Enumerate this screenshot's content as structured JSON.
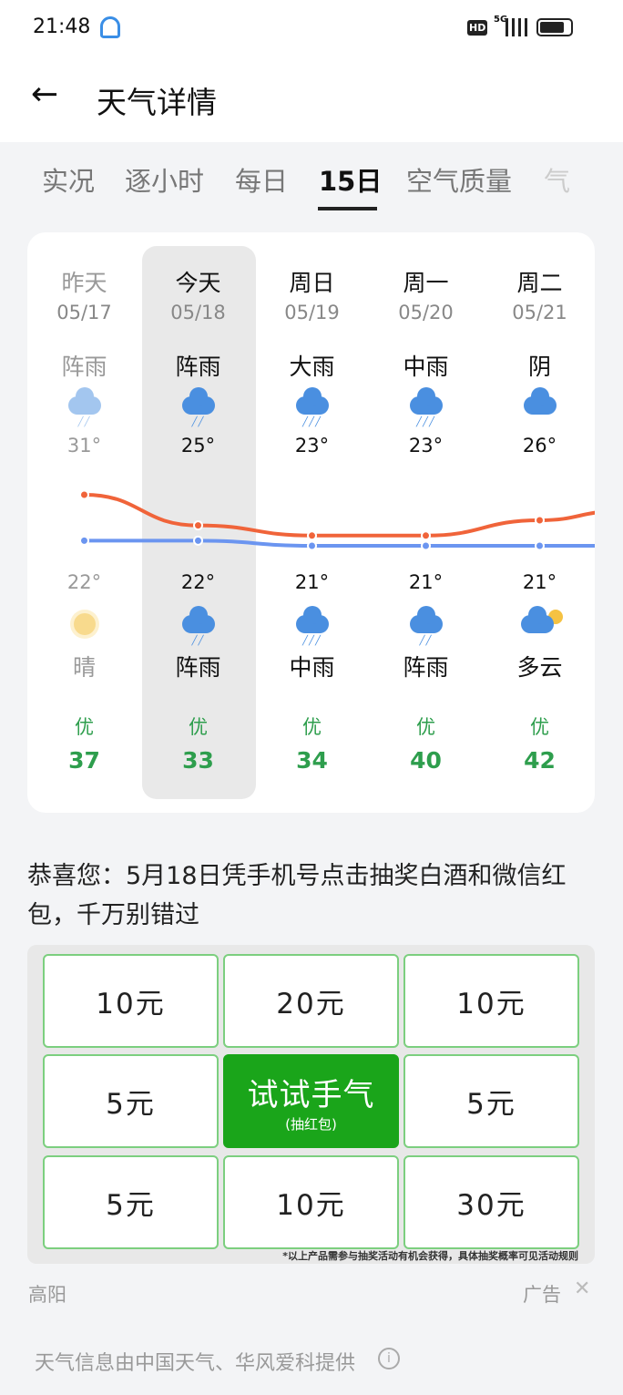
{
  "status": {
    "time": "21:48",
    "network": "5G",
    "hd": "HD"
  },
  "header": {
    "title": "天气详情"
  },
  "tabs": [
    "实况",
    "逐小时",
    "每日",
    "15日",
    "空气质量",
    "气"
  ],
  "active_tab": 3,
  "days": [
    {
      "week": "昨天",
      "date": "05/17",
      "day_cond": "阵雨",
      "day_icon": "shower-icon",
      "high": "31°",
      "high_val": 31,
      "low": "22°",
      "low_val": 22,
      "night_icon": "sun-icon",
      "night_cond": "晴",
      "aqi_label": "优",
      "aqi": "37",
      "past": true
    },
    {
      "week": "今天",
      "date": "05/18",
      "day_cond": "阵雨",
      "day_icon": "shower-icon",
      "high": "25°",
      "high_val": 25,
      "low": "22°",
      "low_val": 22,
      "night_icon": "shower-icon",
      "night_cond": "阵雨",
      "aqi_label": "优",
      "aqi": "33"
    },
    {
      "week": "周日",
      "date": "05/19",
      "day_cond": "大雨",
      "day_icon": "heavy-rain-icon",
      "high": "23°",
      "high_val": 23,
      "low": "21°",
      "low_val": 21,
      "night_icon": "moderate-rain-icon",
      "night_cond": "中雨",
      "aqi_label": "优",
      "aqi": "34"
    },
    {
      "week": "周一",
      "date": "05/20",
      "day_cond": "中雨",
      "day_icon": "moderate-rain-icon",
      "high": "23°",
      "high_val": 23,
      "low": "21°",
      "low_val": 21,
      "night_icon": "shower-icon",
      "night_cond": "阵雨",
      "aqi_label": "优",
      "aqi": "40"
    },
    {
      "week": "周二",
      "date": "05/21",
      "day_cond": "阴",
      "day_icon": "overcast-icon",
      "high": "26°",
      "high_val": 26,
      "low": "21°",
      "low_val": 21,
      "night_icon": "partly-cloudy-icon",
      "night_cond": "多云",
      "aqi_label": "优",
      "aqi": "42"
    }
  ],
  "colors": {
    "high_line": "#f0643a",
    "low_line": "#6b95f0",
    "aqi_good": "#2e9e4d",
    "ad_green": "#1aa51a"
  },
  "ad": {
    "text": "恭喜您：5月18日凭手机号点击抽奖白酒和微信红包，千万别错过",
    "cells": [
      "10元",
      "20元",
      "10元",
      "5元",
      "",
      "5元",
      "5元",
      "10元",
      "30元"
    ],
    "center_title": "试试手气",
    "center_sub": "(抽红包)",
    "disclaimer": "*以上产品需参与抽奖活动有机会获得，具体抽奖概率可见活动规则",
    "source": "高阳",
    "label": "广告"
  },
  "footer": {
    "text": "天气信息由中国天气、华风爱科提供"
  }
}
